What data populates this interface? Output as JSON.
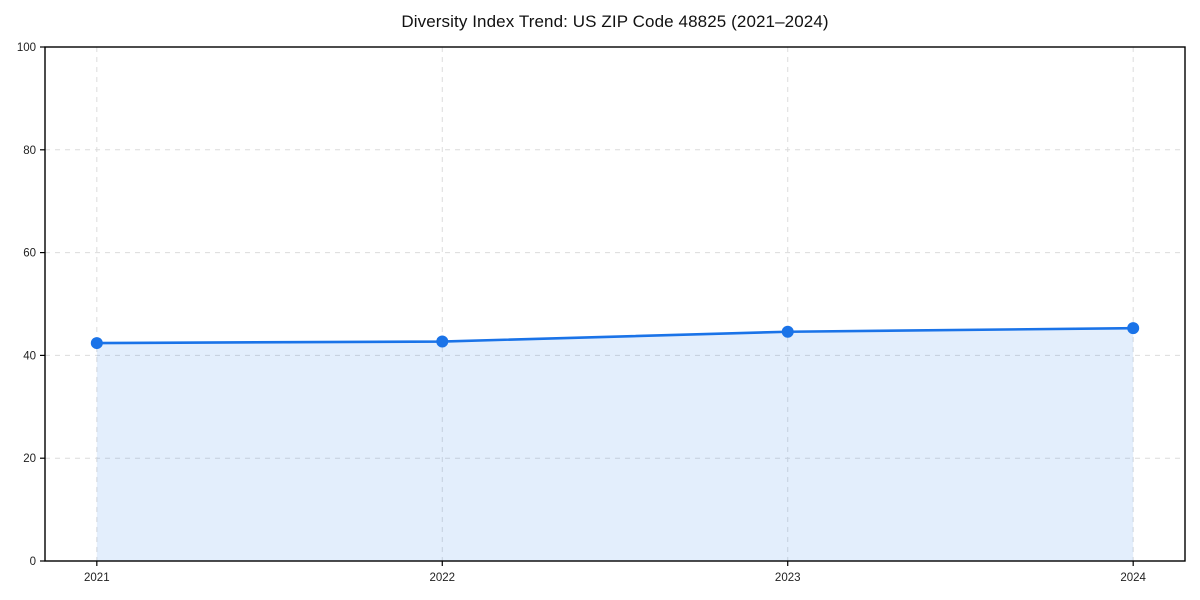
{
  "chart_data": {
    "type": "area",
    "title": "Diversity Index Trend: US ZIP Code 48825 (2021–2024)",
    "categories": [
      "2021",
      "2022",
      "2023",
      "2024"
    ],
    "series": [
      {
        "name": "Diversity Index",
        "values": [
          42.4,
          42.7,
          44.6,
          45.3
        ]
      }
    ],
    "xlabel": "",
    "ylabel": "",
    "ylim": [
      0,
      100
    ],
    "yticks": [
      0,
      20,
      40,
      60,
      80,
      100
    ],
    "grid": true,
    "grid_style": "dashed",
    "legend": false,
    "marker": "circle",
    "colors": {
      "line": "#1a73e8",
      "marker": "#1a73e8",
      "fill": "#1a73e8",
      "fill_opacity": 0.12,
      "grid": "#dcdcdc",
      "spine": "#000000",
      "tick_label": "#1f1f1f",
      "title": "#111111",
      "background": "#ffffff"
    }
  }
}
